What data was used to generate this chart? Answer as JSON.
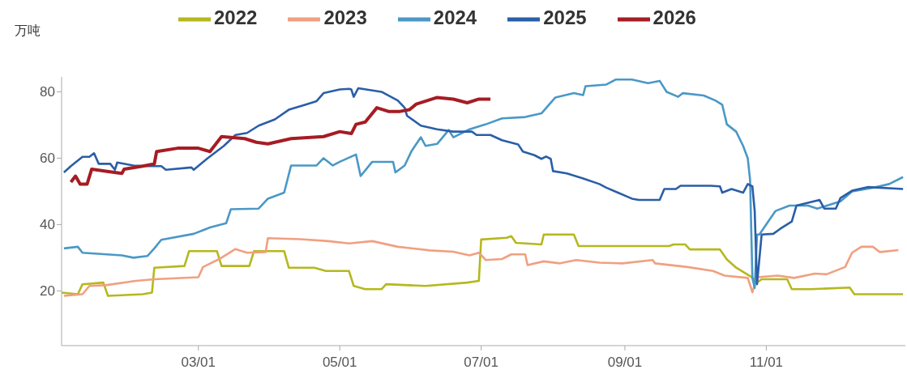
{
  "chart_data": {
    "type": "line",
    "ylabel": "万吨",
    "legend": "top",
    "grid": false,
    "marker": "none",
    "line_style": "solid",
    "xlim": [
      "--01-01",
      "--12-31"
    ],
    "xticks": [
      {
        "value": "--03-01",
        "label": "03/01"
      },
      {
        "value": "--05-01",
        "label": "05/01"
      },
      {
        "value": "--07-01",
        "label": "07/01"
      },
      {
        "value": "--09-01",
        "label": "09/01"
      },
      {
        "value": "--11-01",
        "label": "11/01"
      }
    ],
    "ylim": [
      3.5,
      84.5
    ],
    "yticks": [
      20,
      40,
      60,
      80
    ],
    "series": [
      {
        "name": "2022",
        "color": "#b5b81e",
        "x": [
          "--01-01",
          "--01-08",
          "--01-10",
          "--01-19",
          "--01-21",
          "--02-05",
          "--02-09",
          "--02-10",
          "--02-23",
          "--02-25",
          "--03-09",
          "--03-11",
          "--03-23",
          "--03-25",
          "--04-07",
          "--04-09",
          "--04-20",
          "--04-25",
          "--05-05",
          "--05-07",
          "--05-12",
          "--05-19",
          "--05-21",
          "--06-07",
          "--06-25",
          "--06-30",
          "--07-01",
          "--07-12",
          "--07-14",
          "--07-16",
          "--07-27",
          "--07-28",
          "--08-10",
          "--08-12",
          "--09-02",
          "--09-20",
          "--09-22",
          "--09-27",
          "--09-29",
          "--10-12",
          "--10-15",
          "--10-19",
          "--10-26",
          "--10-28",
          "--10-30",
          "--11-10",
          "--11-12",
          "--11-20",
          "--12-07",
          "--12-09",
          "--12-30"
        ],
        "values": [
          19.5,
          19,
          22,
          22.5,
          18.5,
          19,
          19.5,
          27,
          27.5,
          32,
          32,
          27.5,
          27.5,
          32,
          32,
          27,
          27,
          26,
          26,
          21.5,
          20.5,
          20.5,
          22,
          21.5,
          22.5,
          23,
          35.5,
          36,
          36.5,
          34.5,
          34,
          37,
          37,
          33.5,
          33.5,
          33.5,
          34,
          34,
          32.5,
          32.5,
          29.5,
          27,
          24,
          22.5,
          23.5,
          23.5,
          20.5,
          20.5,
          21,
          19,
          19
        ]
      },
      {
        "name": "2023",
        "color": "#f0a080",
        "x": [
          "--01-02",
          "--01-10",
          "--01-13",
          "--01-20",
          "--02-02",
          "--02-10",
          "--03-01",
          "--03-03",
          "--03-10",
          "--03-17",
          "--03-22",
          "--03-30",
          "--03-31",
          "--04-14",
          "--04-26",
          "--05-05",
          "--05-15",
          "--05-26",
          "--06-09",
          "--06-19",
          "--06-26",
          "--06-30",
          "--07-03",
          "--07-10",
          "--07-14",
          "--07-20",
          "--07-21",
          "--07-28",
          "--08-04",
          "--08-11",
          "--08-21",
          "--08-31",
          "--09-13",
          "--09-14",
          "--09-28",
          "--10-09",
          "--10-14",
          "--10-24",
          "--10-26",
          "--10-28",
          "--11-06",
          "--11-13",
          "--11-22",
          "--11-27",
          "--12-05",
          "--12-08",
          "--12-12",
          "--12-17",
          "--12-20",
          "--12-28"
        ],
        "values": [
          18.5,
          19,
          21.5,
          21.7,
          23,
          23.5,
          24.1,
          27.2,
          29.6,
          32.6,
          31.5,
          31.7,
          35.9,
          35.6,
          35,
          34.3,
          35,
          33.3,
          32.2,
          31.8,
          30.7,
          31.5,
          29.3,
          29.6,
          31,
          31,
          27.8,
          28.9,
          28.3,
          29.3,
          28.5,
          28.3,
          29.3,
          28.3,
          27.2,
          26,
          24.6,
          23.9,
          19.6,
          24.1,
          24.6,
          23.9,
          25.2,
          25,
          27.2,
          31.5,
          33.3,
          33.3,
          31.7,
          32.3
        ]
      },
      {
        "name": "2024",
        "color": "#4a98c6",
        "x": [
          "--01-02",
          "--01-08",
          "--01-10",
          "--01-27",
          "--02-01",
          "--02-07",
          "--02-10",
          "--02-13",
          "--02-27",
          "--03-06",
          "--03-13",
          "--03-15",
          "--03-27",
          "--03-31",
          "--04-07",
          "--04-10",
          "--04-21",
          "--04-24",
          "--04-28",
          "--05-01",
          "--05-08",
          "--05-10",
          "--05-15",
          "--05-24",
          "--05-25",
          "--05-29",
          "--06-01",
          "--06-05",
          "--06-07",
          "--06-12",
          "--06-17",
          "--06-19",
          "--06-26",
          "--07-03",
          "--07-10",
          "--07-20",
          "--07-27",
          "--08-02",
          "--08-10",
          "--08-14",
          "--08-15",
          "--08-24",
          "--08-28",
          "--09-04",
          "--09-11",
          "--09-16",
          "--09-19",
          "--09-24",
          "--09-26",
          "--10-05",
          "--10-10",
          "--10-13",
          "--10-15",
          "--10-19",
          "--10-22",
          "--10-24",
          "--10-25",
          "--10-26",
          "--10-27",
          "--10-28",
          "--10-29",
          "--11-05",
          "--11-11",
          "--11-19",
          "--11-23",
          "--11-28",
          "--12-03",
          "--12-08",
          "--12-17",
          "--12-24",
          "--12-30"
        ],
        "values": [
          32.8,
          33.3,
          31.5,
          30.7,
          30,
          30.5,
          32.8,
          35.4,
          37.2,
          39.1,
          40.4,
          44.6,
          44.8,
          47.8,
          49.6,
          57.8,
          57.8,
          60,
          57.8,
          58.9,
          61.1,
          54.6,
          58.9,
          58.9,
          55.7,
          57.8,
          62.2,
          66.3,
          63.7,
          64.3,
          68.5,
          66.3,
          68.7,
          70.2,
          72,
          72.4,
          73.5,
          78.3,
          79.6,
          79,
          81.7,
          82.2,
          83.7,
          83.7,
          82.6,
          83.3,
          80,
          78.5,
          79.6,
          78.9,
          77.4,
          76.1,
          70.2,
          68,
          63.7,
          60,
          53.5,
          23.9,
          20.9,
          37,
          37,
          44.1,
          45.7,
          45.7,
          44.8,
          45.9,
          47,
          50,
          51.1,
          52.2,
          54.3
        ]
      },
      {
        "name": "2025",
        "color": "#2a5ea8",
        "x": [
          "--01-02",
          "--01-05",
          "--01-10",
          "--01-13",
          "--01-15",
          "--01-17",
          "--01-22",
          "--01-24",
          "--01-25",
          "--02-01",
          "--02-07",
          "--02-13",
          "--02-15",
          "--02-26",
          "--02-27",
          "--03-05",
          "--03-12",
          "--03-17",
          "--03-22",
          "--03-27",
          "--04-03",
          "--04-09",
          "--04-16",
          "--04-21",
          "--04-24",
          "--05-01",
          "--05-05",
          "--05-06",
          "--05-07",
          "--05-09",
          "--05-19",
          "--05-26",
          "--05-29",
          "--05-30",
          "--06-05",
          "--06-12",
          "--06-19",
          "--06-27",
          "--06-29",
          "--07-05",
          "--07-10",
          "--07-17",
          "--07-19",
          "--07-24",
          "--07-27",
          "--07-29",
          "--07-31",
          "--08-01",
          "--08-07",
          "--08-14",
          "--08-21",
          "--08-24",
          "--08-29",
          "--09-04",
          "--09-07",
          "--09-16",
          "--09-18",
          "--09-23",
          "--09-25",
          "--10-08",
          "--10-12",
          "--10-13",
          "--10-17",
          "--10-22",
          "--10-24",
          "--10-26",
          "--10-27",
          "--10-28",
          "--10-30",
          "--11-04",
          "--11-07",
          "--11-12",
          "--11-14",
          "--11-24",
          "--11-26",
          "--12-01",
          "--12-03",
          "--12-08",
          "--12-15",
          "--12-30"
        ],
        "values": [
          55.7,
          57.6,
          60.4,
          60.4,
          61.5,
          58.3,
          58.3,
          56.5,
          58.7,
          57.8,
          57.6,
          57.6,
          56.5,
          57.2,
          56.5,
          60,
          63.7,
          67,
          67.6,
          69.8,
          71.7,
          74.6,
          76.1,
          77.2,
          79.6,
          80.7,
          80.9,
          80.7,
          78.5,
          81.1,
          80,
          77.4,
          75.2,
          72.8,
          69.8,
          68.7,
          68,
          68,
          67,
          67,
          65.4,
          64.1,
          62,
          60.9,
          59.8,
          60.5,
          59.8,
          56.1,
          55.4,
          53.9,
          52.2,
          51.1,
          49.6,
          47.8,
          47.4,
          47.4,
          50.7,
          50.7,
          51.7,
          51.7,
          51.5,
          49.6,
          50.7,
          49.6,
          52.2,
          51.5,
          44.1,
          22,
          37,
          37.2,
          38.7,
          40.9,
          45.7,
          47.4,
          44.8,
          44.8,
          48,
          50.2,
          51.3,
          50.7
        ]
      },
      {
        "name": "2026",
        "color": "#a61c24",
        "x": [
          "--01-05",
          "--01-07",
          "--01-09",
          "--01-12",
          "--01-14",
          "--01-20",
          "--01-27",
          "--01-28",
          "--02-05",
          "--02-10",
          "--02-11",
          "--02-20",
          "--03-01",
          "--03-06",
          "--03-11",
          "--03-21",
          "--03-26",
          "--03-31",
          "--04-10",
          "--04-24",
          "--05-01",
          "--05-06",
          "--05-08",
          "--05-12",
          "--05-17",
          "--05-22",
          "--05-27",
          "--05-31",
          "--06-03",
          "--06-12",
          "--06-19",
          "--06-25",
          "--06-30",
          "--07-05"
        ],
        "values": [
          52.8,
          54.6,
          52.2,
          52.2,
          56.7,
          56.1,
          55.4,
          56.7,
          57.6,
          58.3,
          62,
          63,
          63,
          62,
          66.5,
          65.9,
          64.8,
          64.3,
          65.9,
          66.5,
          68,
          67.4,
          70.2,
          70.9,
          75.2,
          74.1,
          74.1,
          74.6,
          76.3,
          78.3,
          77.8,
          76.7,
          77.8,
          77.8
        ]
      }
    ]
  }
}
